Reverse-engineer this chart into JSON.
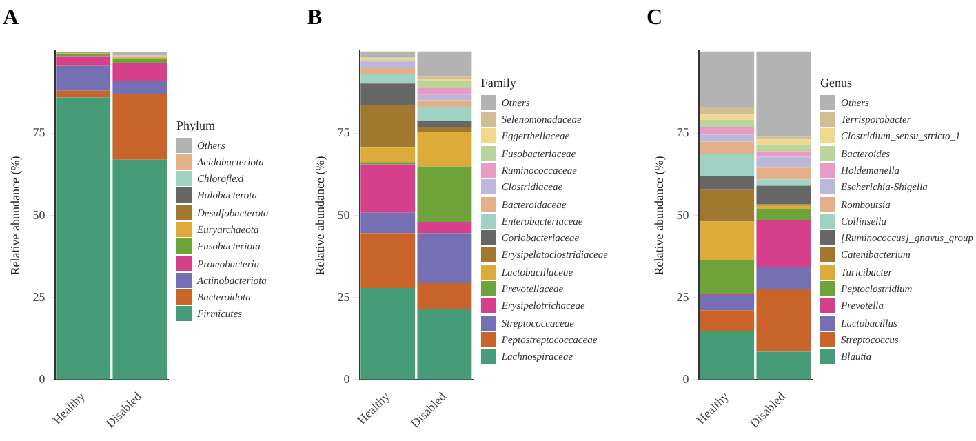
{
  "chart_data": [
    {
      "type": "bar",
      "title": "A",
      "ylabel": "Relative abundance (%)",
      "legend_title": "Phylum",
      "categories": [
        "Healthy",
        "Disabled"
      ],
      "stacked": true,
      "legend": "right",
      "grid": false,
      "ylim": [
        0,
        100
      ],
      "yticks": [
        0,
        25,
        50,
        75
      ],
      "series": [
        {
          "name": "Firmicutes",
          "color": "#469b79",
          "values": [
            86,
            67
          ]
        },
        {
          "name": "Bacteroidota",
          "color": "#c9642a",
          "values": [
            2,
            20
          ]
        },
        {
          "name": "Actinobacteriota",
          "color": "#7570b3",
          "values": [
            7.5,
            4
          ]
        },
        {
          "name": "Proteobacteria",
          "color": "#d63f8a",
          "values": [
            3,
            5.3
          ]
        },
        {
          "name": "Fusobacteriota",
          "color": "#6ea33a",
          "values": [
            0.8,
            1.5
          ]
        },
        {
          "name": "Euryarchaeota",
          "color": "#dcab3a",
          "values": [
            0.1,
            0.3
          ]
        },
        {
          "name": "Desulfobacterota",
          "color": "#a0782f",
          "values": [
            0.1,
            0.3
          ]
        },
        {
          "name": "Halobacterota",
          "color": "#666666",
          "values": [
            0.1,
            null
          ]
        },
        {
          "name": "Chloroflexi",
          "color": "#9fd2c2",
          "values": [
            0.1,
            0.1
          ]
        },
        {
          "name": "Acidobacteriota",
          "color": "#e3b08a",
          "values": [
            0.1,
            0.2
          ]
        },
        {
          "name": "Others",
          "color": "#b3b3b3",
          "values": [
            null,
            1.2
          ]
        }
      ]
    },
    {
      "type": "bar",
      "title": "B",
      "ylabel": "Relative abundance (%)",
      "legend_title": "Family",
      "categories": [
        "Healthy",
        "Disabled"
      ],
      "stacked": true,
      "legend": "right",
      "grid": false,
      "ylim": [
        0,
        100
      ],
      "yticks": [
        0,
        25,
        50,
        75
      ],
      "series": [
        {
          "name": "Lachnospiraceae",
          "color": "#469b79",
          "values": [
            28,
            21.7
          ]
        },
        {
          "name": "Peptostreptococcaceae",
          "color": "#c9642a",
          "values": [
            16.7,
            7.8
          ]
        },
        {
          "name": "Streptococcaceae",
          "color": "#7570b3",
          "values": [
            6.2,
            15.2
          ]
        },
        {
          "name": "Erysipelotrichaceae",
          "color": "#d63f8a",
          "values": [
            14.7,
            3.4
          ]
        },
        {
          "name": "Prevotellaceae",
          "color": "#6ea33a",
          "values": [
            0.7,
            16.9
          ]
        },
        {
          "name": "Lactobacillaceae",
          "color": "#dcab3a",
          "values": [
            4.4,
            10.4
          ]
        },
        {
          "name": "Erysipelatoclostridiaceae",
          "color": "#a0782f",
          "values": [
            13,
            1.4
          ]
        },
        {
          "name": "Coriobacteriaceae",
          "color": "#666666",
          "values": [
            6.5,
            1.9
          ]
        },
        {
          "name": "Enterobacteriaceae",
          "color": "#9fd2c2",
          "values": [
            2.8,
            4.3
          ]
        },
        {
          "name": "Bacteroidaceae",
          "color": "#e3b08a",
          "values": [
            1.9,
            2.1
          ]
        },
        {
          "name": "Clostridiaceae",
          "color": "#bcb8da",
          "values": [
            1.9,
            1.6
          ]
        },
        {
          "name": "Ruminococcaceae",
          "color": "#e89bc5",
          "values": [
            0.4,
            2.3
          ]
        },
        {
          "name": "Fusobacteriaceae",
          "color": "#b9d59b",
          "values": [
            0.3,
            1.9
          ]
        },
        {
          "name": "Eggerthellaceae",
          "color": "#f0d88c",
          "values": [
            0.5,
            0.6
          ]
        },
        {
          "name": "Selenomonadaceae",
          "color": "#d2bd94",
          "values": [
            0.1,
            0.8
          ]
        },
        {
          "name": "Others",
          "color": "#b3b3b3",
          "values": [
            1.9,
            7.7
          ]
        }
      ]
    },
    {
      "type": "bar",
      "title": "C",
      "ylabel": "Relative abundance (%)",
      "legend_title": "Genus",
      "categories": [
        "Healthy",
        "Disabled"
      ],
      "stacked": true,
      "legend": "right",
      "grid": false,
      "ylim": [
        0,
        100
      ],
      "yticks": [
        0,
        25,
        50,
        75
      ],
      "series": [
        {
          "name": "Blautia",
          "color": "#469b79",
          "values": [
            14.9,
            8.6
          ]
        },
        {
          "name": "Streptococcus",
          "color": "#c9642a",
          "values": [
            6.3,
            19.1
          ]
        },
        {
          "name": "Lactobacillus",
          "color": "#7570b3",
          "values": [
            4.7,
            6.8
          ]
        },
        {
          "name": "Prevotella",
          "color": "#d63f8a",
          "values": [
            0.4,
            14.1
          ]
        },
        {
          "name": "Peptoclostridium",
          "color": "#6ea33a",
          "values": [
            10.1,
            3.4
          ]
        },
        {
          "name": "Turicibacter",
          "color": "#dcab3a",
          "values": [
            11.8,
            1
          ]
        },
        {
          "name": "Catenibacterium",
          "color": "#a0782f",
          "values": [
            9.6,
            0.5
          ]
        },
        {
          "name": "[Ruminococcus]_gnavus_group",
          "color": "#666666",
          "values": [
            4.3,
            5.6
          ]
        },
        {
          "name": "Collinsella",
          "color": "#9fd2c2",
          "values": [
            6.6,
            1.9
          ]
        },
        {
          "name": "Romboutsia",
          "color": "#e3b08a",
          "values": [
            3.8,
            3.6
          ]
        },
        {
          "name": "Escherichia-Shigella",
          "color": "#bcb8da",
          "values": [
            2.1,
            3.3
          ]
        },
        {
          "name": "Holdemanella",
          "color": "#e89bc5",
          "values": [
            2.4,
            1.7
          ]
        },
        {
          "name": "Bacteroides",
          "color": "#b9d59b",
          "values": [
            2.2,
            2.1
          ]
        },
        {
          "name": "Clostridium_sensu_stricto_1",
          "color": "#f0d88c",
          "values": [
            1.5,
            1.5
          ]
        },
        {
          "name": "Terrisporobacter",
          "color": "#d2bd94",
          "values": [
            2.3,
            0.8
          ]
        },
        {
          "name": "Others",
          "color": "#b3b3b3",
          "values": [
            17,
            26
          ]
        }
      ]
    }
  ]
}
